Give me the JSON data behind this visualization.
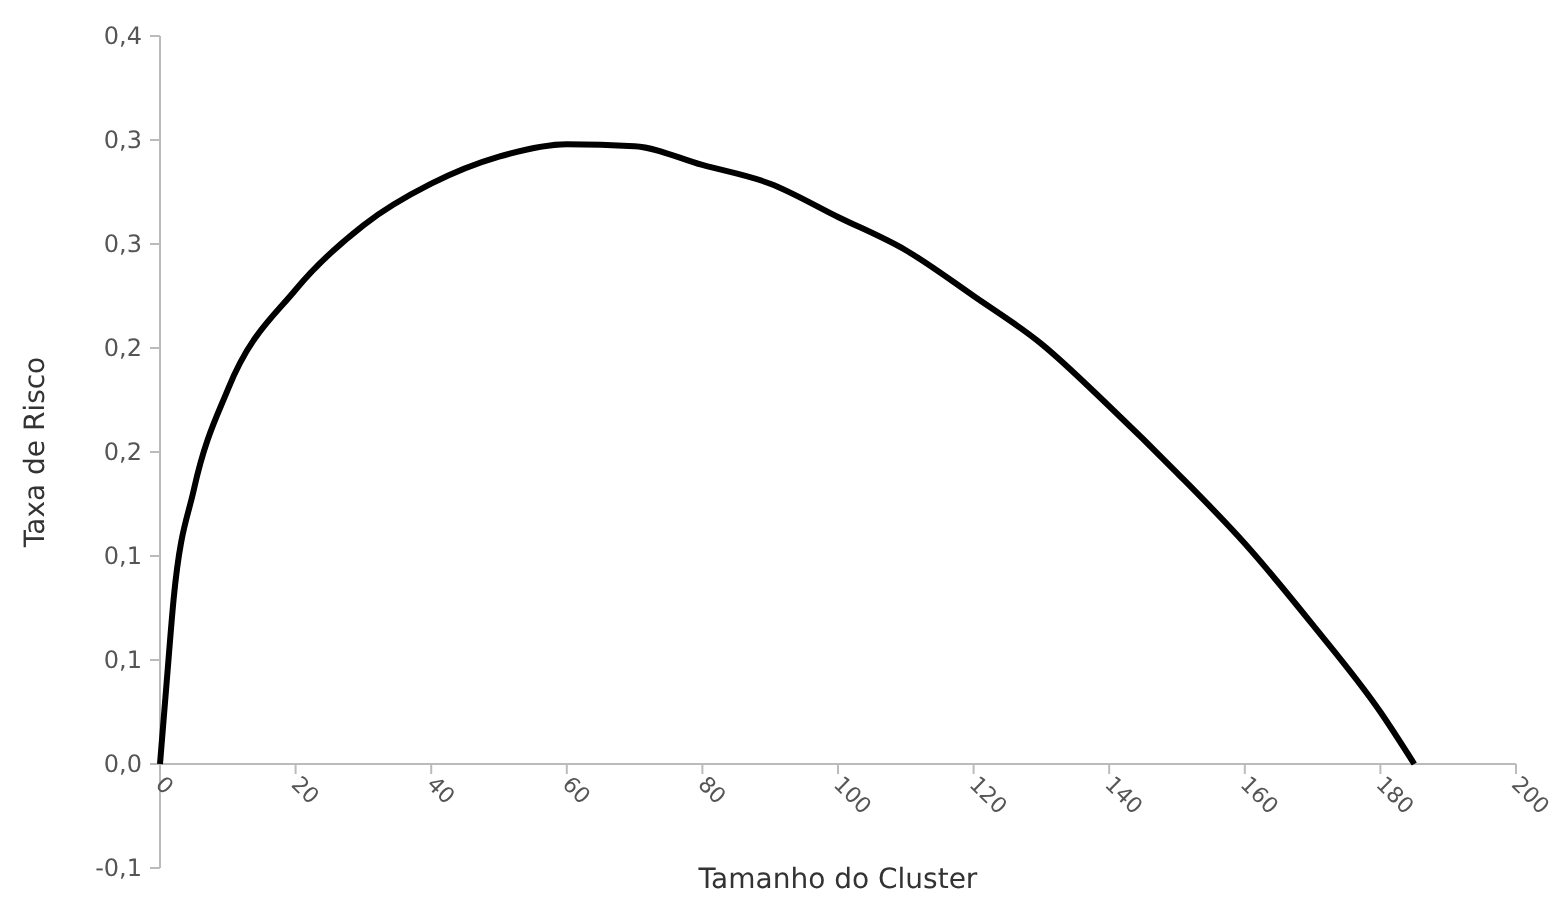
{
  "chart_data": {
    "type": "line",
    "xlabel": "Tamanho do Cluster",
    "ylabel": "Taxa de Risco",
    "x": [
      0,
      1,
      2,
      5,
      10,
      20,
      30,
      40,
      50,
      60,
      70,
      80,
      90,
      100,
      110,
      120,
      130,
      140,
      150,
      160,
      170,
      180,
      185
    ],
    "series": [
      {
        "color": "#000000",
        "values": [
          0,
          0.04,
          0.079,
          0.132,
          0.18,
          0.228,
          0.259,
          0.279,
          0.292,
          0.298,
          0.297,
          0.288,
          0.279,
          0.263,
          0.247,
          0.225,
          0.202,
          0.172,
          0.14,
          0.106,
          0.067,
          0.025,
          0
        ]
      }
    ],
    "xlim": [
      0,
      200
    ],
    "xticks": [
      0,
      20,
      40,
      60,
      80,
      100,
      120,
      140,
      160,
      180,
      200
    ],
    "ylim": [
      -0.05,
      0.35
    ],
    "yticks": [
      {
        "value": -0.05,
        "label": "-0,1"
      },
      {
        "value": 0,
        "label": "0,0"
      },
      {
        "value": 0.05,
        "label": "0,1"
      },
      {
        "value": 0.1,
        "label": "0,1"
      },
      {
        "value": 0.15,
        "label": "0,2"
      },
      {
        "value": 0.2,
        "label": "0,2"
      },
      {
        "value": 0.25,
        "label": "0,3"
      },
      {
        "value": 0.3,
        "label": "0,3"
      },
      {
        "value": 0.35,
        "label": "0,4"
      }
    ],
    "grid": false,
    "marker": "none",
    "line_style": "solid"
  }
}
